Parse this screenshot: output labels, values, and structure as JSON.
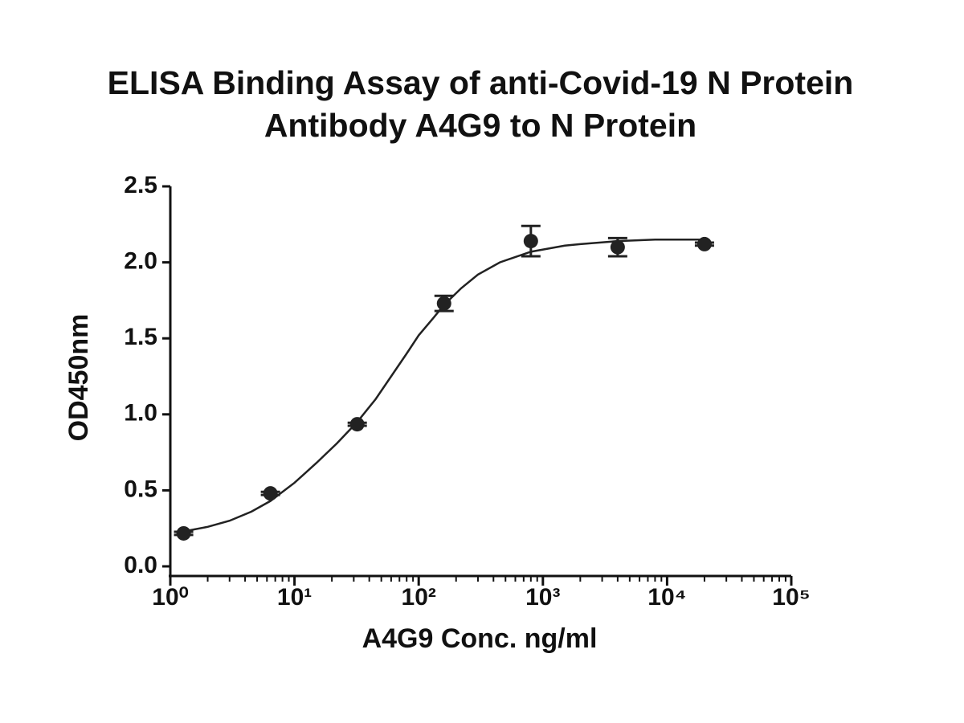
{
  "chart_data": {
    "type": "scatter",
    "title": [
      "ELISA Binding Assay of anti-Covid-19 N Protein",
      "Antibody A4G9 to N Protein"
    ],
    "xlabel": "A4G9 Conc. ng/ml",
    "ylabel": "OD450nm",
    "x": [
      1.28,
      6.4,
      32,
      160,
      800,
      4000,
      20000
    ],
    "values": [
      0.217,
      0.48,
      0.935,
      1.73,
      2.14,
      2.1,
      2.12
    ],
    "errors": [
      0.01,
      0.01,
      0.01,
      0.05,
      0.1,
      0.06,
      0.01
    ],
    "fit": {
      "x": [
        1.28,
        2,
        3,
        4.5,
        6.4,
        10,
        15,
        22,
        32,
        45,
        60,
        80,
        100,
        130,
        160,
        220,
        300,
        450,
        800,
        1500,
        2000,
        4000,
        8000,
        20000
      ],
      "values": [
        0.23,
        0.26,
        0.3,
        0.36,
        0.43,
        0.55,
        0.68,
        0.81,
        0.95,
        1.1,
        1.25,
        1.4,
        1.52,
        1.63,
        1.72,
        1.83,
        1.92,
        2.0,
        2.07,
        2.11,
        2.12,
        2.14,
        2.15,
        2.15
      ]
    },
    "color": "#222222",
    "xscale": "log",
    "xlim": [
      1,
      100000
    ],
    "xticks": [
      {
        "value": 1,
        "label": "10⁰"
      },
      {
        "value": 10,
        "label": "10¹"
      },
      {
        "value": 100,
        "label": "10²"
      },
      {
        "value": 1000,
        "label": "10³"
      },
      {
        "value": 10000,
        "label": "10⁴"
      },
      {
        "value": 100000,
        "label": "10⁵"
      }
    ],
    "ylim": [
      0,
      2.5
    ],
    "yticks": [
      {
        "value": 0,
        "label": "0.0"
      },
      0.5,
      {
        "value": 1,
        "label": "1.0"
      },
      1.5,
      {
        "value": 2,
        "label": "2.0"
      },
      2.5
    ]
  }
}
